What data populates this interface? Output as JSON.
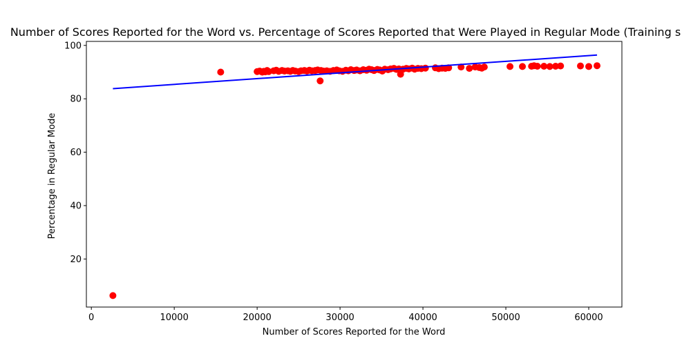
{
  "chart_data": {
    "type": "scatter",
    "title": "Number of Scores Reported for the Word vs. Percentage of Scores Reported that Were Played in Regular Mode (Training s",
    "xlabel": "Number of Scores Reported for the Word",
    "ylabel": "Percentage in Regular Mode",
    "xlim": [
      -600,
      64000
    ],
    "ylim": [
      2,
      101.5
    ],
    "xticks": [
      0,
      10000,
      20000,
      30000,
      40000,
      50000,
      60000
    ],
    "yticks": [
      20,
      40,
      60,
      80,
      100
    ],
    "grid": false,
    "point_color": "#ff0000",
    "line_color": "#0000ff",
    "trend_line": {
      "x": [
        2600,
        61000
      ],
      "y": [
        83.8,
        96.4
      ]
    },
    "points": [
      [
        2600,
        6.3
      ],
      [
        15600,
        90.0
      ],
      [
        27600,
        86.7
      ],
      [
        37300,
        89.2
      ],
      [
        20000,
        90.2
      ],
      [
        20300,
        90.4
      ],
      [
        20600,
        90.0
      ],
      [
        20800,
        90.3
      ],
      [
        21000,
        90.1
      ],
      [
        21200,
        90.6
      ],
      [
        21400,
        90.2
      ],
      [
        22000,
        90.5
      ],
      [
        22300,
        90.7
      ],
      [
        22600,
        90.3
      ],
      [
        23000,
        90.6
      ],
      [
        23300,
        90.4
      ],
      [
        23700,
        90.5
      ],
      [
        24000,
        90.3
      ],
      [
        24300,
        90.6
      ],
      [
        24600,
        90.4
      ],
      [
        25000,
        90.2
      ],
      [
        25300,
        90.5
      ],
      [
        25700,
        90.6
      ],
      [
        26000,
        90.4
      ],
      [
        26300,
        90.7
      ],
      [
        26600,
        90.5
      ],
      [
        27000,
        90.6
      ],
      [
        27300,
        90.8
      ],
      [
        27700,
        90.6
      ],
      [
        28000,
        90.4
      ],
      [
        28400,
        90.5
      ],
      [
        28800,
        90.3
      ],
      [
        29200,
        90.6
      ],
      [
        29600,
        90.8
      ],
      [
        29900,
        90.5
      ],
      [
        30300,
        90.3
      ],
      [
        30700,
        90.7
      ],
      [
        31000,
        90.5
      ],
      [
        31300,
        90.9
      ],
      [
        31700,
        90.6
      ],
      [
        32000,
        90.8
      ],
      [
        32400,
        90.5
      ],
      [
        32800,
        90.9
      ],
      [
        33200,
        90.7
      ],
      [
        33500,
        91.1
      ],
      [
        33800,
        90.9
      ],
      [
        34100,
        90.6
      ],
      [
        34500,
        91.0
      ],
      [
        34800,
        90.8
      ],
      [
        35100,
        90.4
      ],
      [
        35400,
        91.1
      ],
      [
        35800,
        90.9
      ],
      [
        36100,
        91.2
      ],
      [
        36500,
        91.4
      ],
      [
        36800,
        91.0
      ],
      [
        37100,
        91.2
      ],
      [
        37600,
        91.1
      ],
      [
        38000,
        91.4
      ],
      [
        38300,
        91.2
      ],
      [
        38700,
        91.5
      ],
      [
        39000,
        91.1
      ],
      [
        39400,
        91.4
      ],
      [
        39800,
        91.3
      ],
      [
        40300,
        91.5
      ],
      [
        41500,
        91.6
      ],
      [
        41900,
        91.3
      ],
      [
        42300,
        91.5
      ],
      [
        42700,
        91.4
      ],
      [
        43100,
        91.6
      ],
      [
        44600,
        91.9
      ],
      [
        45600,
        91.4
      ],
      [
        46300,
        91.9
      ],
      [
        46800,
        91.7
      ],
      [
        47100,
        91.5
      ],
      [
        47400,
        91.9
      ],
      [
        50500,
        92.1
      ],
      [
        52000,
        92.1
      ],
      [
        53100,
        92.2
      ],
      [
        53400,
        92.4
      ],
      [
        53800,
        92.2
      ],
      [
        54600,
        92.2
      ],
      [
        55300,
        92.1
      ],
      [
        56000,
        92.2
      ],
      [
        56600,
        92.3
      ],
      [
        59000,
        92.3
      ],
      [
        60000,
        92.1
      ],
      [
        61000,
        92.4
      ]
    ]
  }
}
